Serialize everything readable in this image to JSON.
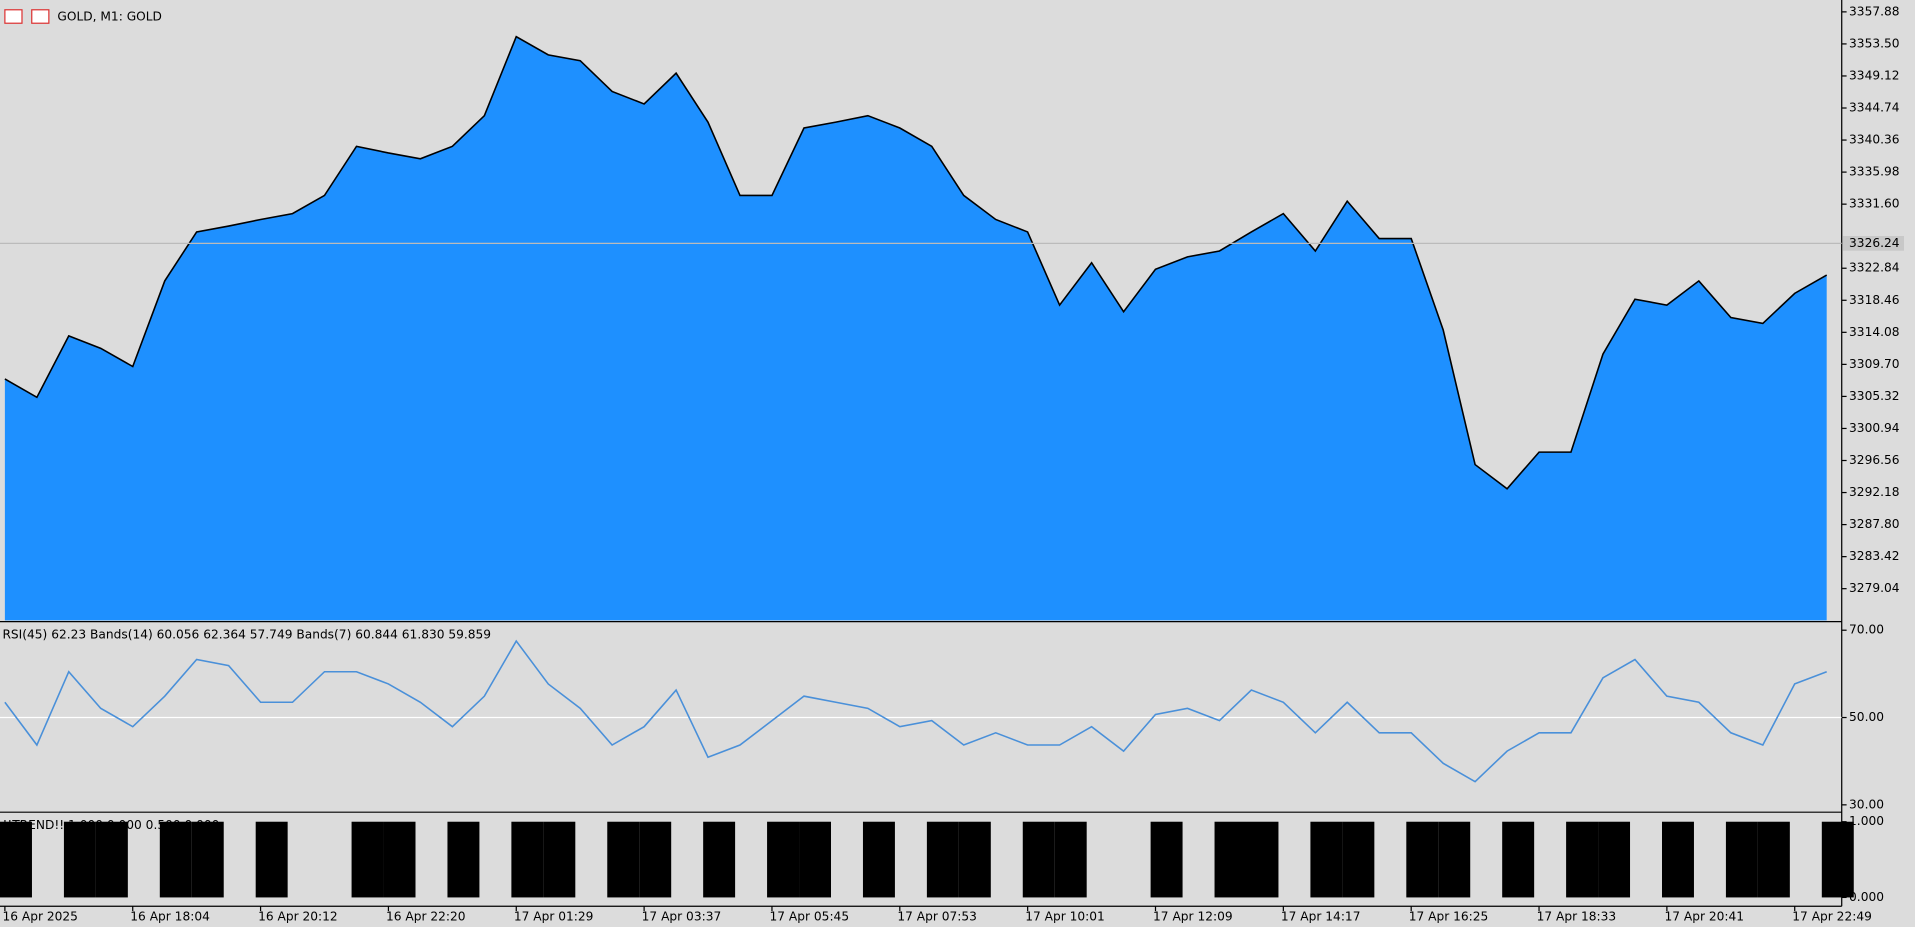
{
  "chart_data": [
    {
      "type": "line",
      "title": "GOLD, M1:  GOLD",
      "color": "#000000",
      "fill": "#1e90ff",
      "categories": [
        "16 Apr 2025",
        null,
        null,
        null,
        "16 Apr 18:04",
        null,
        null,
        null,
        "16 Apr 20:12",
        null,
        null,
        null,
        "16 Apr 22:20",
        null,
        null,
        null,
        "17 Apr 01:29",
        null,
        null,
        null,
        "17 Apr 03:37",
        null,
        null,
        null,
        "17 Apr 05:45",
        null,
        null,
        null,
        "17 Apr 07:53",
        null,
        null,
        null,
        "17 Apr 10:01",
        null,
        null,
        null,
        "17 Apr 12:09",
        null,
        null,
        null,
        "17 Apr 14:17",
        null,
        null,
        null,
        "17 Apr 16:25",
        null,
        null,
        null,
        "17 Apr 18:33",
        null,
        null,
        null,
        "17 Apr 20:41",
        null,
        null,
        null,
        "17 Apr 22:49",
        null
      ],
      "values": [
        3307.7,
        3305.2,
        3313.6,
        3311.9,
        3309.4,
        3321.1,
        3327.8,
        3328.6,
        3329.5,
        3330.3,
        3332.8,
        3339.5,
        3338.6,
        3337.8,
        3339.5,
        3343.7,
        3354.5,
        3352.0,
        3351.2,
        3347.0,
        3345.3,
        3349.5,
        3342.8,
        3332.8,
        3332.8,
        3342.0,
        3342.8,
        3343.7,
        3342.0,
        3339.5,
        3332.8,
        3329.5,
        3327.8,
        3317.8,
        3323.6,
        3316.9,
        3322.7,
        3324.4,
        3325.2,
        3327.8,
        3330.3,
        3325.2,
        3332.0,
        3326.9,
        3326.9,
        3314.4,
        3296.0,
        3292.7,
        3297.7,
        3297.7,
        3311.1,
        3318.6,
        3317.8,
        3321.1,
        3316.1,
        3315.3,
        3319.4,
        3321.9
      ],
      "ylim": [
        3274.7,
        3359.0
      ],
      "yticks": [
        3357.88,
        {
          "value": 3353.5,
          "label": "3353.50"
        },
        3349.12,
        3344.74,
        3340.36,
        3335.98,
        {
          "value": 3331.6,
          "label": "3331.60"
        },
        3322.84,
        3318.46,
        3314.08,
        {
          "value": 3309.7,
          "label": "3309.70"
        },
        3305.32,
        3300.94,
        3296.56,
        3292.18,
        {
          "value": 3287.8,
          "label": "3287.80"
        },
        3283.42,
        3279.04
      ],
      "current_price": 3326.24
    },
    {
      "type": "line",
      "title": "RSI(45) 62.23 Bands(14) 60.056 62.364 57.749 Bands(7) 60.844 61.830 59.859",
      "color": "#4a90d9",
      "values": [
        53.5,
        43.7,
        60.5,
        52.1,
        47.9,
        54.9,
        63.3,
        61.9,
        53.5,
        53.5,
        60.5,
        60.5,
        57.7,
        53.5,
        47.9,
        54.9,
        67.5,
        57.7,
        52.1,
        43.7,
        47.9,
        56.3,
        40.9,
        43.7,
        49.3,
        54.9,
        53.5,
        52.1,
        47.9,
        49.3,
        43.7,
        46.5,
        43.7,
        43.7,
        47.9,
        42.3,
        50.7,
        52.1,
        49.3,
        56.3,
        53.5,
        46.5,
        53.5,
        46.5,
        46.5,
        39.5,
        35.3,
        42.3,
        46.5,
        46.5,
        59.1,
        63.3,
        54.9,
        53.5,
        46.5,
        43.7,
        57.7,
        60.5
      ],
      "ylim": [
        28.6,
        71.4
      ],
      "yticks": [
        {
          "value": 70,
          "label": "70.00"
        },
        {
          "value": 50,
          "label": "50.00"
        },
        {
          "value": 30,
          "label": "30.00"
        }
      ]
    },
    {
      "type": "bar",
      "title": "!!TREND!! 1.000 0.000 0.500 0.000",
      "color": "#000000",
      "values": [
        1,
        0,
        1,
        1,
        0,
        1,
        1,
        0,
        1,
        0,
        0,
        1,
        1,
        0,
        1,
        0,
        1,
        1,
        0,
        1,
        1,
        0,
        1,
        0,
        1,
        1,
        0,
        1,
        0,
        1,
        1,
        0,
        1,
        1,
        0,
        0,
        1,
        0,
        1,
        1,
        0,
        1,
        1,
        0,
        1,
        1,
        0,
        1,
        0,
        1,
        1,
        0,
        1,
        0,
        1,
        1,
        0,
        1
      ],
      "ylim": [
        -0.1,
        1.11
      ],
      "yticks": [
        {
          "value": 1,
          "label": "1.000"
        },
        {
          "value": 0,
          "label": "0.000"
        }
      ]
    }
  ]
}
